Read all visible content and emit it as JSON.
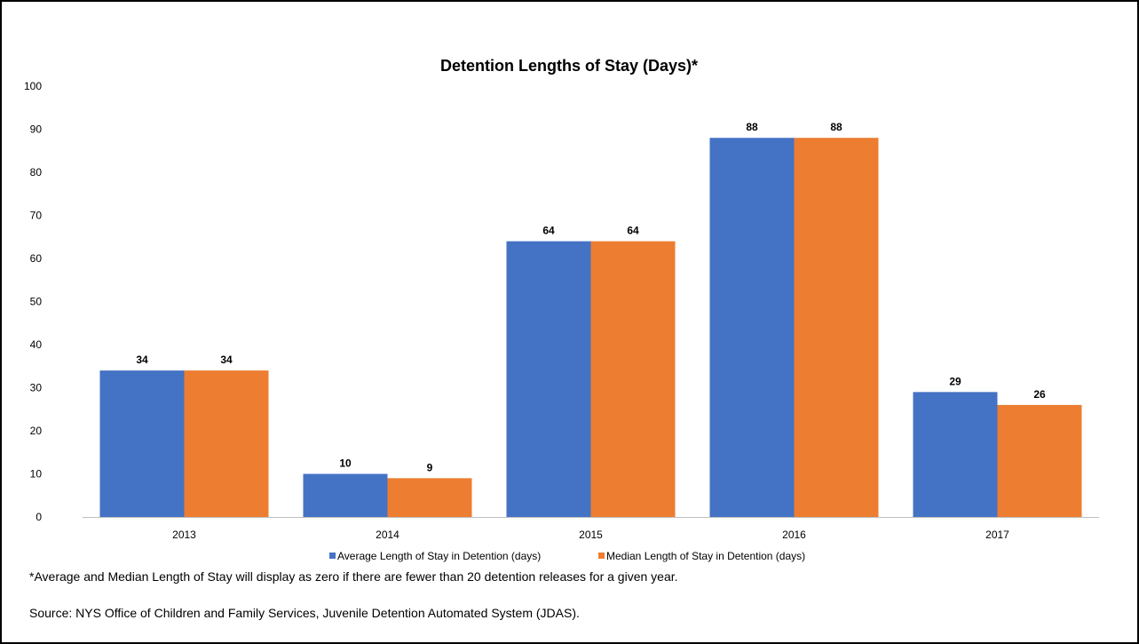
{
  "chart_data": {
    "type": "bar",
    "title": "Detention Lengths of Stay (Days)*",
    "categories": [
      "2013",
      "2014",
      "2015",
      "2016",
      "2017"
    ],
    "series": [
      {
        "name": "Average Length of Stay in Detention (days)",
        "values": [
          34,
          10,
          64,
          88,
          29
        ],
        "color": "#4472C4"
      },
      {
        "name": "Median Length of Stay in Detention (days)",
        "values": [
          34,
          9,
          64,
          88,
          26
        ],
        "color": "#ED7D31"
      }
    ],
    "y_ticks": [
      "0",
      "10",
      "20",
      "30",
      "40",
      "50",
      "60",
      "70",
      "80",
      "90",
      "100"
    ],
    "ylim": [
      0,
      100
    ],
    "grid": false,
    "legend_position": "bottom"
  },
  "footnote": "*Average and Median Length of Stay will display as zero if there are fewer than 20 detention releases for a given year.",
  "source": "Source: NYS Office of Children and Family Services, Juvenile Detention Automated System (JDAS)."
}
